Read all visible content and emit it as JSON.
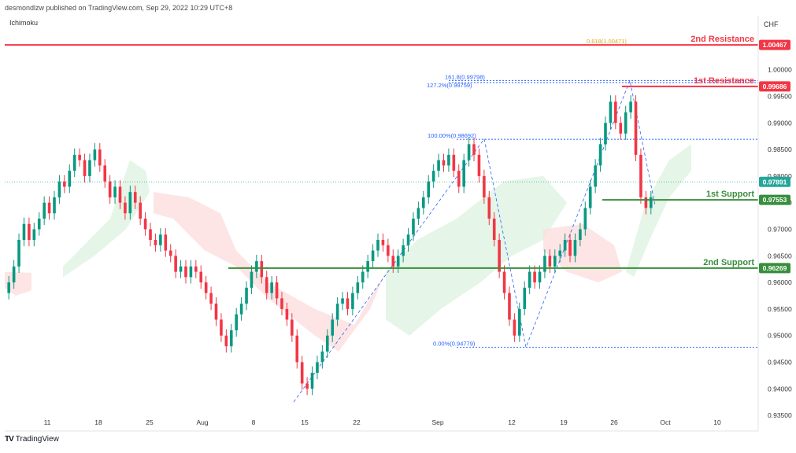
{
  "header": {
    "published_by": "desmondlzw published on TradingView.com, Sep 29, 2022 10:29 UTC+8",
    "indicator": "Ichimoku",
    "currency": "CHF",
    "brand": "TradingView"
  },
  "chart_data": {
    "type": "candlestick",
    "ylim": [
      0.9325,
      1.0075
    ],
    "y_ticks": [
      "1.00000",
      "0.99500",
      "0.99000",
      "0.98500",
      "0.98000",
      "0.97500",
      "0.97000",
      "0.96500",
      "0.96000",
      "0.95500",
      "0.95000",
      "0.94500",
      "0.94000",
      "0.93500"
    ],
    "y_tick_values": [
      1.0,
      0.995,
      0.99,
      0.985,
      0.98,
      0.975,
      0.97,
      0.965,
      0.96,
      0.955,
      0.95,
      0.945,
      0.94,
      0.935
    ],
    "x_ticks": [
      "11",
      "18",
      "25",
      "Aug",
      "8",
      "15",
      "22",
      "Sep",
      "12",
      "19",
      "26",
      "Oct",
      "10"
    ],
    "levels": [
      {
        "name": "2nd Resistance",
        "value": "1.00467",
        "y": 1.00467,
        "color": "#f23645"
      },
      {
        "name": "1st Resistance",
        "value": "0.99686",
        "y": 0.99686,
        "color": "#f23645"
      },
      {
        "name": "1st Support",
        "value": "0.97553",
        "y": 0.97553,
        "color": "#388e3c"
      },
      {
        "name": "2nd Support",
        "value": "0.96269",
        "y": 0.96269,
        "color": "#388e3c"
      }
    ],
    "current_price": {
      "value": "0.97891",
      "y": 0.97891,
      "color": "#26a69a"
    },
    "fib_labels": [
      {
        "text": "0.618(1.00471)",
        "y": 1.00471,
        "color": "#e0a81b"
      },
      {
        "text": "161.8(0.99798)",
        "y": 0.99798,
        "color": "#2962ff"
      },
      {
        "text": "127.2%(0.99759)",
        "y": 0.99759,
        "color": "#2962ff"
      },
      {
        "text": "100.00%(0.98692)",
        "y": 0.98692,
        "color": "#2962ff"
      },
      {
        "text": "0.00%(0.94779)",
        "y": 0.94779,
        "color": "#2962ff"
      }
    ],
    "candles_close": [
      0.96,
      0.963,
      0.968,
      0.971,
      0.968,
      0.97,
      0.972,
      0.975,
      0.973,
      0.976,
      0.979,
      0.978,
      0.981,
      0.984,
      0.983,
      0.98,
      0.983,
      0.985,
      0.982,
      0.979,
      0.976,
      0.978,
      0.975,
      0.973,
      0.977,
      0.975,
      0.972,
      0.97,
      0.968,
      0.967,
      0.969,
      0.966,
      0.965,
      0.962,
      0.963,
      0.961,
      0.963,
      0.962,
      0.96,
      0.958,
      0.956,
      0.953,
      0.95,
      0.948,
      0.951,
      0.954,
      0.956,
      0.959,
      0.962,
      0.964,
      0.961,
      0.958,
      0.96,
      0.957,
      0.955,
      0.953,
      0.95,
      0.945,
      0.941,
      0.94,
      0.943,
      0.945,
      0.947,
      0.95,
      0.953,
      0.956,
      0.957,
      0.955,
      0.958,
      0.96,
      0.962,
      0.964,
      0.966,
      0.968,
      0.967,
      0.965,
      0.963,
      0.965,
      0.967,
      0.969,
      0.972,
      0.974,
      0.976,
      0.979,
      0.981,
      0.983,
      0.982,
      0.984,
      0.981,
      0.978,
      0.983,
      0.986,
      0.984,
      0.98,
      0.976,
      0.972,
      0.968,
      0.962,
      0.958,
      0.953,
      0.95,
      0.955,
      0.959,
      0.962,
      0.96,
      0.962,
      0.965,
      0.963,
      0.965,
      0.966,
      0.968,
      0.965,
      0.968,
      0.97,
      0.974,
      0.978,
      0.982,
      0.986,
      0.99,
      0.994,
      0.99,
      0.988,
      0.992,
      0.994,
      0.984,
      0.976,
      0.974,
      0.976
    ]
  }
}
